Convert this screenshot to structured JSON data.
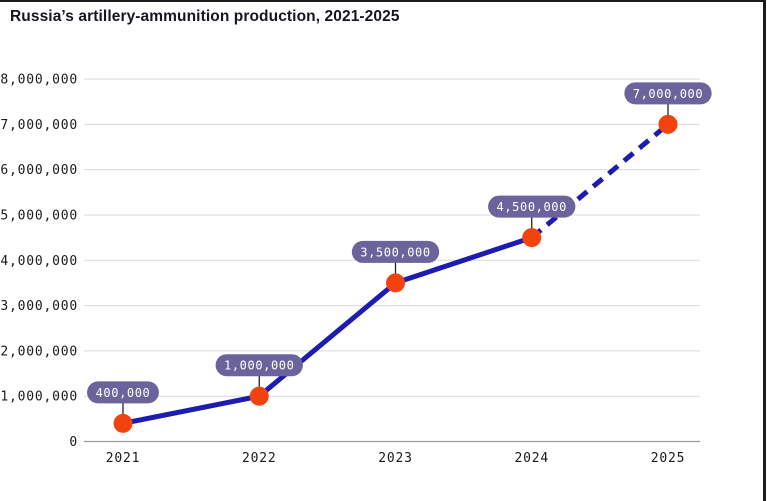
{
  "title": "Russia’s artillery-ammunition production, 2021-2025",
  "chart_data": {
    "type": "line",
    "title": "Russia’s artillery-ammunition production, 2021-2025",
    "categories": [
      "2021",
      "2022",
      "2023",
      "2024",
      "2025"
    ],
    "values": [
      400000,
      1000000,
      3500000,
      4500000,
      7000000
    ],
    "point_labels": [
      "400,000",
      "1,000,000",
      "3,500,000",
      "4,500,000",
      "7,000,000"
    ],
    "segment_styles": [
      "solid",
      "solid",
      "solid",
      "dashed"
    ],
    "ylim": [
      0,
      8000000
    ],
    "ytick_step": 1000000,
    "ytick_labels": [
      "0",
      "1,000,000",
      "2,000,000",
      "3,000,000",
      "4,000,000",
      "5,000,000",
      "6,000,000",
      "7,000,000",
      "8,000,000"
    ],
    "grid": true,
    "legend": false,
    "colors": {
      "line": "#1d1cb0",
      "point": "#f2420d",
      "pill": "#6a639c",
      "pill_text": "#ffffff",
      "grid": "#d9d9d9",
      "axis": "#9d9d9d",
      "connector": "#222222",
      "text": "#1a1a1a",
      "title": "#16161f",
      "background": "#ffffff"
    }
  }
}
